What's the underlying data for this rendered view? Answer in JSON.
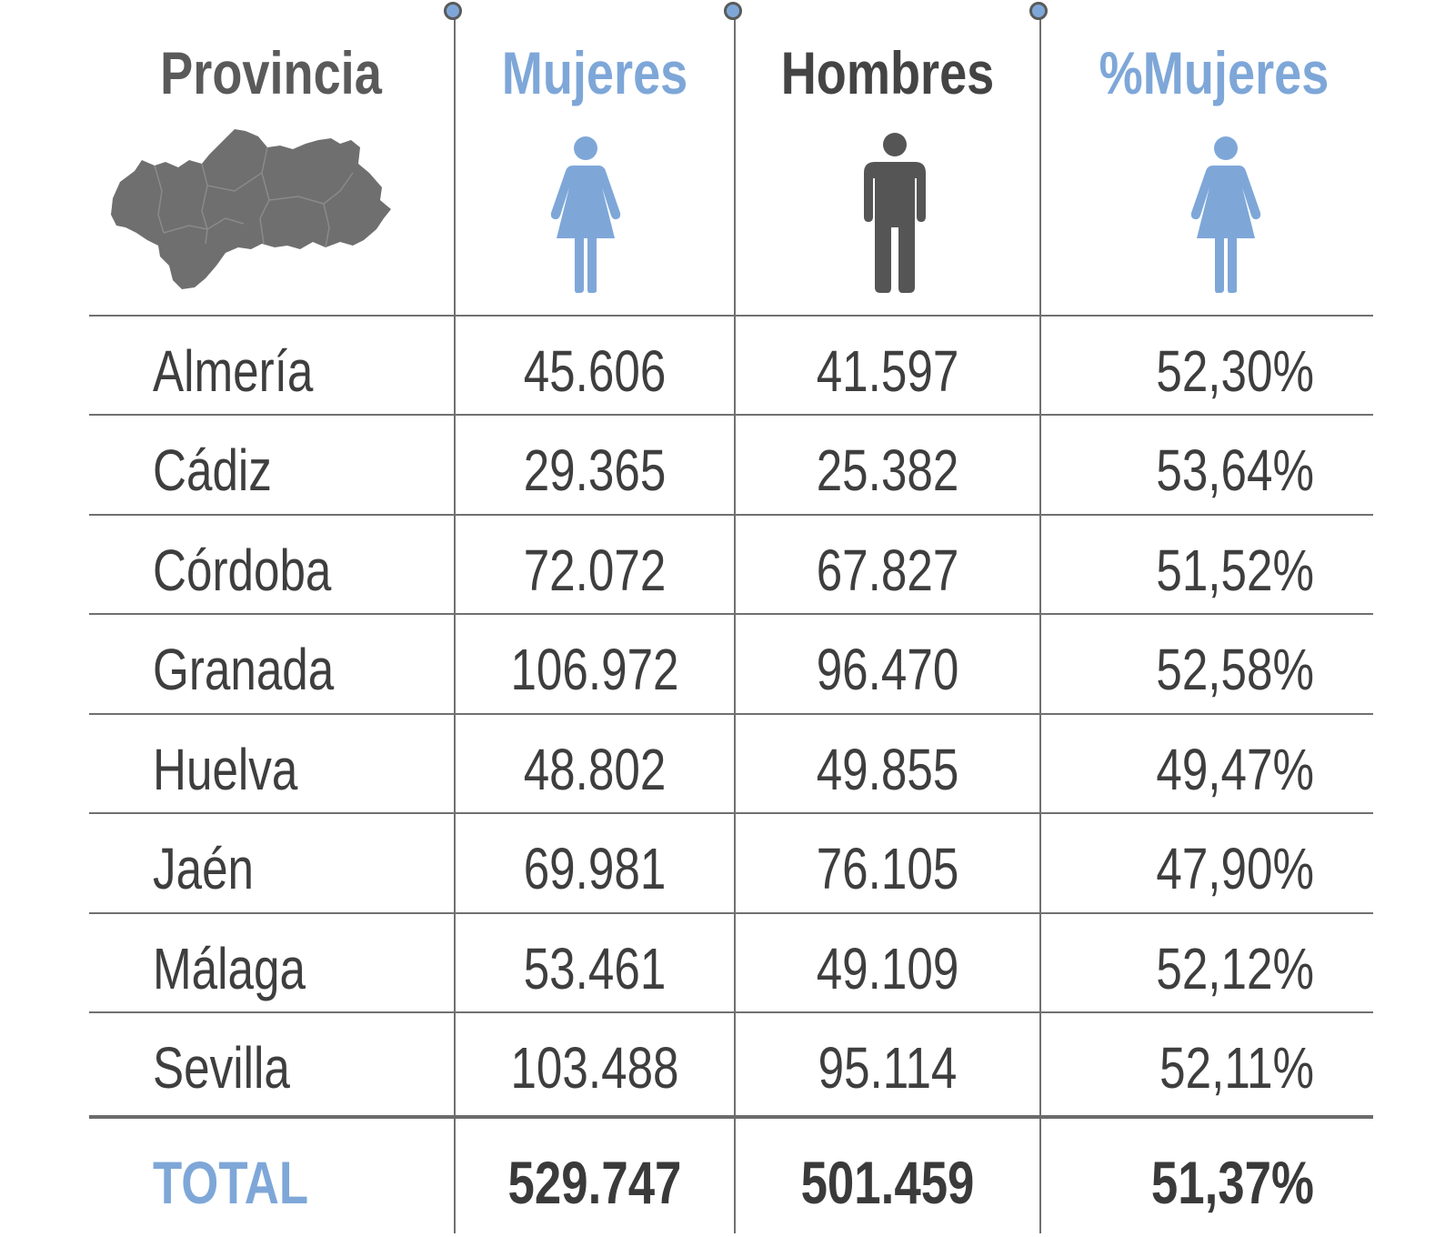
{
  "colors": {
    "accent_blue": "#7ea7d8",
    "dark_text": "#3e3e3e",
    "icon_dark": "#555555",
    "map_gray": "#6f6f6f",
    "rule_gray": "#707070"
  },
  "header": {
    "provincia": "Provincia",
    "mujeres": "Mujeres",
    "hombres": "Hombres",
    "pct_mujeres": "%Mujeres"
  },
  "icons": {
    "map": "andalucia-map-icon",
    "mujeres": "woman-icon",
    "hombres": "man-icon",
    "pct_mujeres": "woman-icon"
  },
  "chart_data": {
    "type": "table",
    "columns": [
      "Provincia",
      "Mujeres",
      "Hombres",
      "%Mujeres"
    ],
    "rows": [
      {
        "provincia": "Almería",
        "mujeres": "45.606",
        "hombres": "41.597",
        "pct_mujeres": "52,30%"
      },
      {
        "provincia": "Cádiz",
        "mujeres": "29.365",
        "hombres": "25.382",
        "pct_mujeres": "53,64%"
      },
      {
        "provincia": "Córdoba",
        "mujeres": "72.072",
        "hombres": "67.827",
        "pct_mujeres": "51,52%"
      },
      {
        "provincia": "Granada",
        "mujeres": "106.972",
        "hombres": "96.470",
        "pct_mujeres": "52,58%"
      },
      {
        "provincia": "Huelva",
        "mujeres": "48.802",
        "hombres": "49.855",
        "pct_mujeres": "49,47%"
      },
      {
        "provincia": "Jaén",
        "mujeres": "69.981",
        "hombres": "76.105",
        "pct_mujeres": "47,90%"
      },
      {
        "provincia": "Málaga",
        "mujeres": "53.461",
        "hombres": "49.109",
        "pct_mujeres": "52,12%"
      },
      {
        "provincia": "Sevilla",
        "mujeres": "103.488",
        "hombres": "95.114",
        "pct_mujeres": "52,11%"
      }
    ],
    "total": {
      "provincia": "TOTAL",
      "mujeres": "529.747",
      "hombres": "501.459",
      "pct_mujeres": "51,37%"
    }
  }
}
